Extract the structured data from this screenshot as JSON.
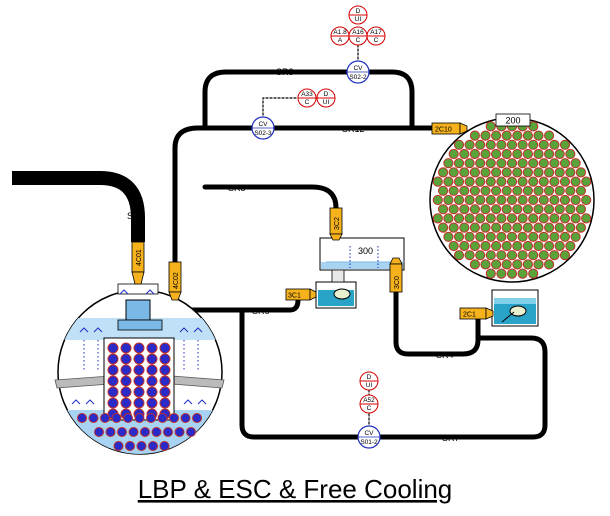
{
  "title": "LBP & ESC & Free Cooling",
  "colors": {
    "pipe": "#000000",
    "valve_fill": "#f5b21c",
    "signal_red": "#d40000",
    "signal_blue": "#1f2fbf",
    "tube_green": "#5aa23a",
    "tube_red": "#c0302a",
    "fuel_blue": "#2a2ac8",
    "water_light": "#a9d3f2",
    "tank_cyan": "#2aa3c8"
  },
  "lines": {
    "sr1": "SR1",
    "sr5": "SR5",
    "sr6": "SR6",
    "sr8": "SR8",
    "sr12": "SR12",
    "sr4": "SR4",
    "sr7": "SR7"
  },
  "valves": {
    "v4c01": "4C01",
    "v4c02": "4C02",
    "v3c2": "3C2",
    "v3c1": "3C1",
    "v3c0": "3C0",
    "v2c1": "2C1",
    "v2c10": "2C10"
  },
  "components": {
    "hx_label": "200",
    "tank_label": "300"
  },
  "check_valves": {
    "s022": {
      "cv": "CV",
      "id": "S02-2"
    },
    "s023": {
      "cv": "CV",
      "id": "S02-3"
    },
    "s012": {
      "cv": "CV",
      "id": "S01-2"
    }
  },
  "signals": {
    "top_d": {
      "t": "D",
      "b": "UI"
    },
    "a18": {
      "t": "A1.8",
      "b": "A"
    },
    "a16": {
      "t": "A16",
      "b": "C"
    },
    "a17": {
      "t": "A17",
      "b": "C"
    },
    "a33": {
      "t": "A33",
      "b": "C"
    },
    "mid_d": {
      "t": "D",
      "b": "UI"
    },
    "bot_d": {
      "t": "D",
      "b": "UI"
    },
    "a52": {
      "t": "A52",
      "b": "C"
    }
  }
}
